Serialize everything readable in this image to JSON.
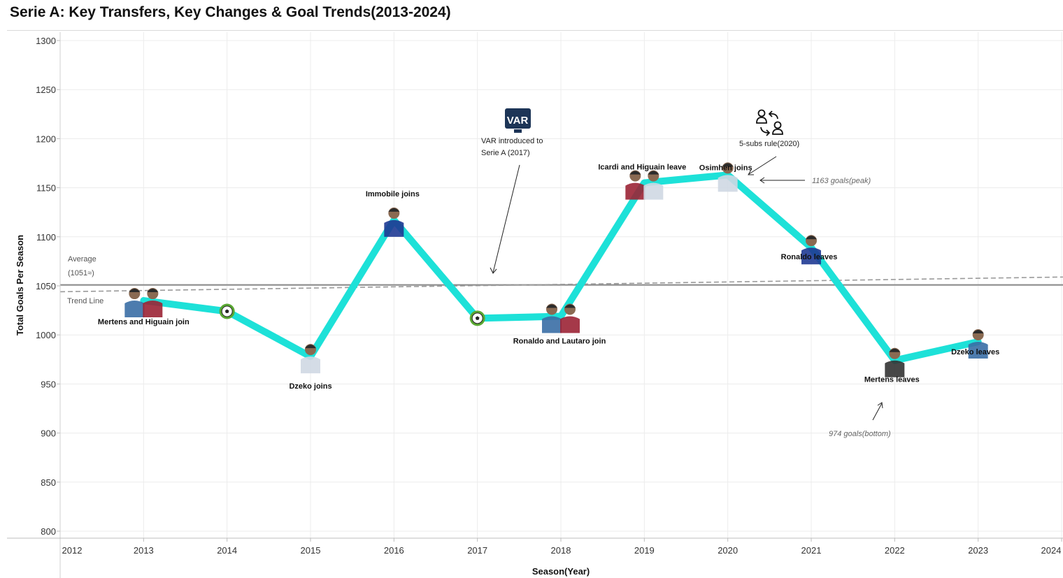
{
  "title": "Serie A: Key Transfers, Key Changes & Goal Trends(2013-2024)",
  "chart_data": {
    "type": "line",
    "title": "Serie A: Key Transfers, Key Changes & Goal Trends(2013-2024)",
    "xlabel": "Season(Year)",
    "ylabel": "Total Goals Per Season",
    "xlim": [
      2012,
      2024
    ],
    "ylim": [
      800,
      1300
    ],
    "x_ticks": [
      "2012",
      "2013",
      "2014",
      "2015",
      "2016",
      "2017",
      "2018",
      "2019",
      "2020",
      "2021",
      "2022",
      "2023",
      "2024"
    ],
    "y_ticks": [
      "800",
      "850",
      "900",
      "950",
      "1000",
      "1050",
      "1100",
      "1150",
      "1200",
      "1250",
      "1300"
    ],
    "grid": true,
    "series_color": "#1de1d8",
    "x": [
      2013,
      2014,
      2015,
      2016,
      2017,
      2018,
      2019,
      2020,
      2021,
      2022,
      2023
    ],
    "values": [
      1035,
      1024,
      978,
      1117,
      1017,
      1019,
      1155,
      1163,
      1089,
      974,
      993
    ],
    "average": {
      "value": 1051,
      "label": "Average",
      "sublabel": "(1051≈)"
    },
    "trend_line": {
      "label": "Trend Line",
      "start": 1044,
      "end": 1059
    },
    "point_labels": [
      {
        "x": 2013,
        "text": "Mertens and Higuain join",
        "player": "players-photo"
      },
      {
        "x": 2014,
        "text": "",
        "player": "football-icon"
      },
      {
        "x": 2015,
        "text": "Dzeko joins",
        "player": "player-photo"
      },
      {
        "x": 2016,
        "text": "Immobile joins",
        "player": "player-photo"
      },
      {
        "x": 2017,
        "text": "",
        "player": "football-icon"
      },
      {
        "x": 2018,
        "text": "Ronaldo and Lautaro join",
        "player": "players-photo"
      },
      {
        "x": 2019,
        "text": "Icardi and Higuain leave",
        "player": "players-photo"
      },
      {
        "x": 2020,
        "text": "Osimhen joins",
        "player": "player-photo"
      },
      {
        "x": 2021,
        "text": "Ronaldo leaves",
        "player": "player-photo"
      },
      {
        "x": 2022,
        "text": "Mertens leaves",
        "player": "player-photo"
      },
      {
        "x": 2023,
        "text": "Dzeko leaves",
        "player": "player-photo"
      }
    ],
    "annotations": {
      "var_icon_text": "VAR",
      "var_line1": "VAR introduced to",
      "var_line2": "Serie A (2017)",
      "subs_rule": "5-subs rule(2020)",
      "peak": "1163 goals(peak)",
      "bottom": "974 goals(bottom)"
    }
  }
}
